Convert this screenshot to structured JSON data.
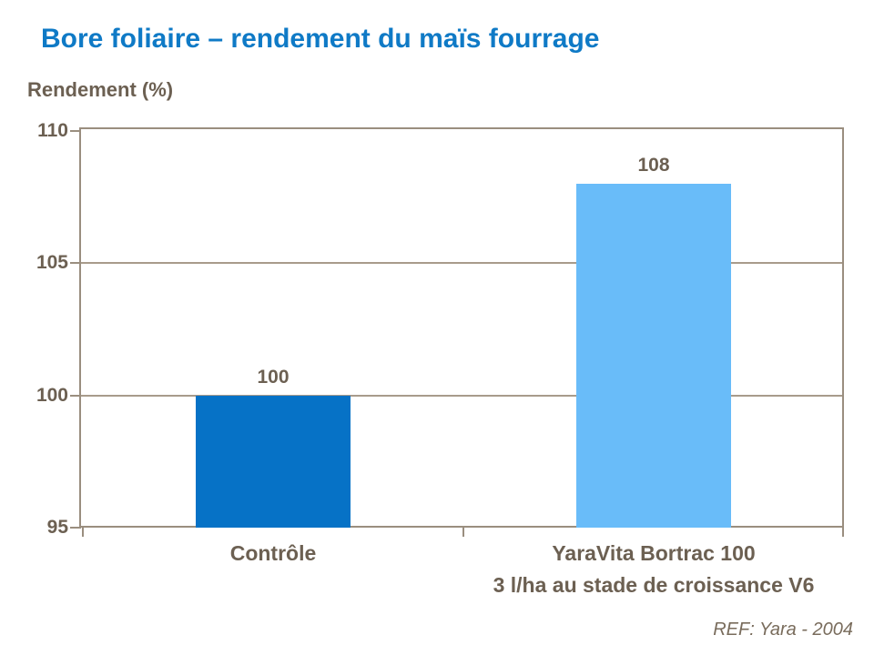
{
  "slide": {
    "title": "Bore foliaire – rendement du maïs fourrage",
    "y_axis_title": "Rendement (%)",
    "reference": "REF: Yara - 2004"
  },
  "chart_data": {
    "type": "bar",
    "title": "Bore foliaire – rendement du maïs fourrage",
    "ylabel": "Rendement (%)",
    "xlabel": "",
    "categories": [
      "Contrôle",
      "YaraVita Bortrac 100"
    ],
    "category_sublabels": [
      "",
      "3 l/ha au stade de croissance V6"
    ],
    "values": [
      100,
      108
    ],
    "value_labels": [
      "100",
      "108"
    ],
    "bar_colors": [
      "#0672C6",
      "#69BCF9"
    ],
    "ylim": [
      95,
      110
    ],
    "yticks": [
      95,
      100,
      105,
      110
    ],
    "grid": true,
    "legend": false,
    "title_color": "#0F7AC6",
    "text_color": "#6C6052",
    "grid_color": "#A89B8B",
    "axis_color": "#9A8E7F",
    "reference": "REF: Yara - 2004"
  }
}
